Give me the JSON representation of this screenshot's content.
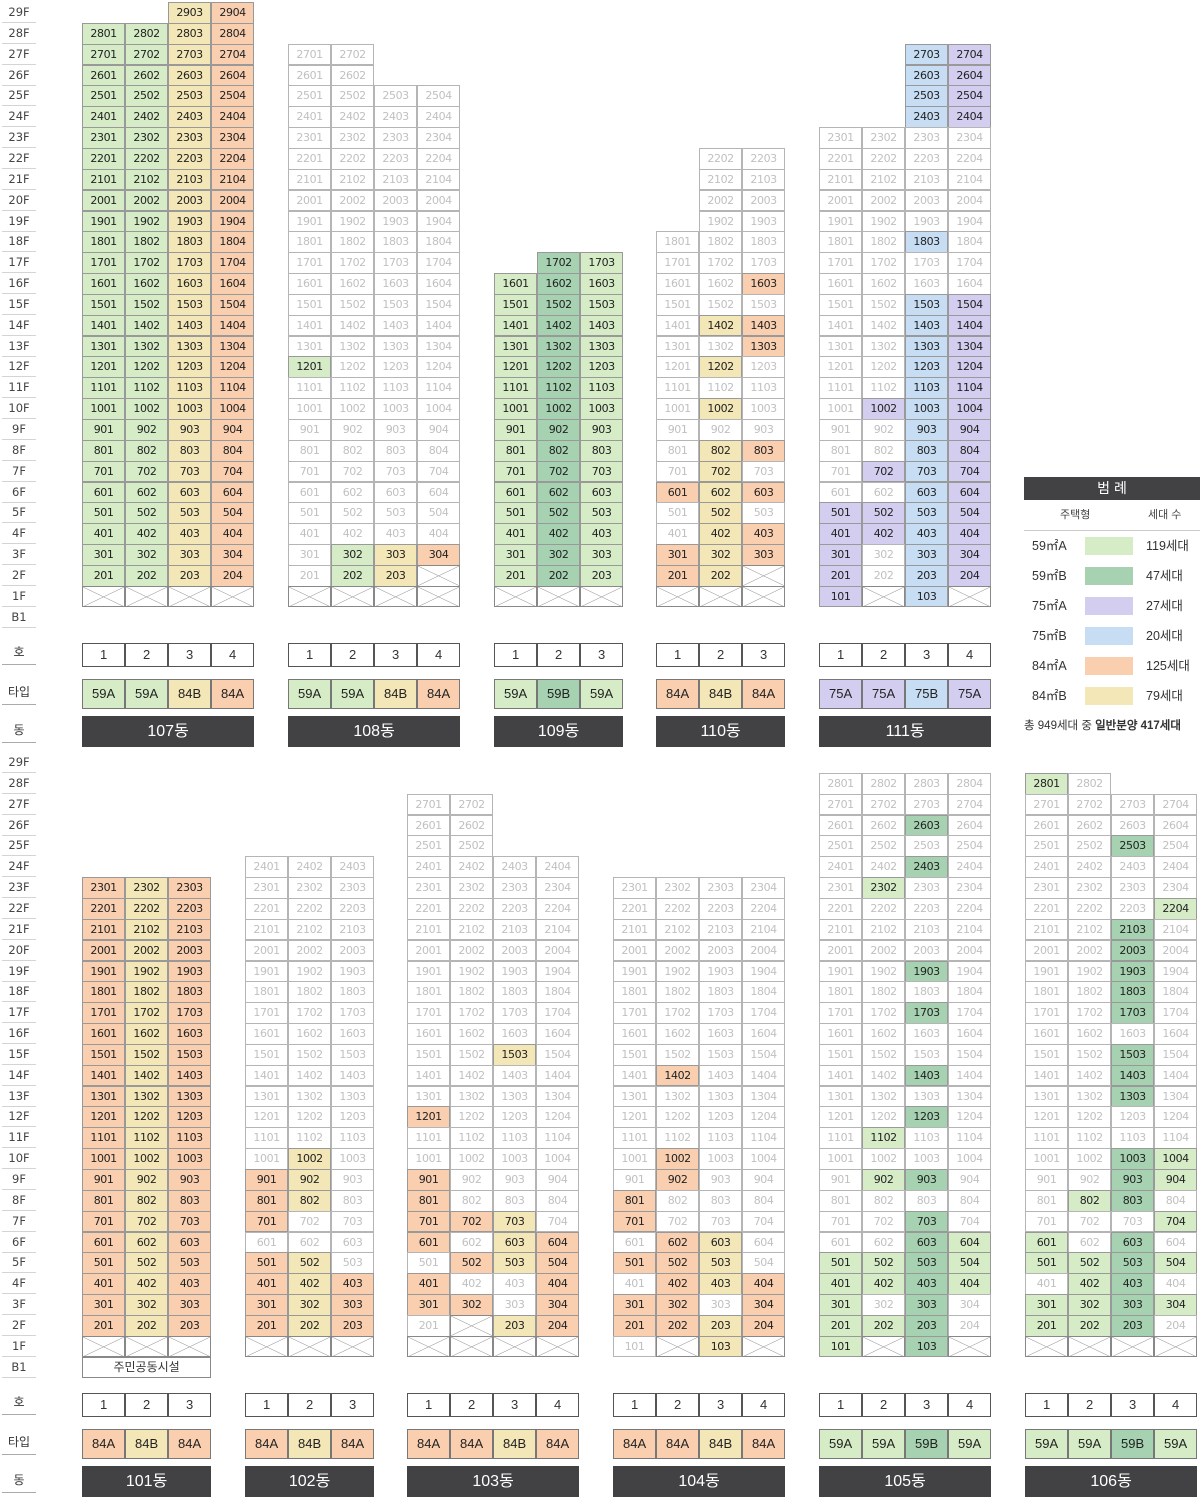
{
  "floor_axis": [
    "29F",
    "28F",
    "27F",
    "26F",
    "25F",
    "24F",
    "23F",
    "22F",
    "21F",
    "20F",
    "19F",
    "18F",
    "17F",
    "16F",
    "15F",
    "14F",
    "13F",
    "12F",
    "11F",
    "10F",
    "9F",
    "8F",
    "7F",
    "6F",
    "5F",
    "4F",
    "3F",
    "2F",
    "1F",
    "B1"
  ],
  "row_labels": {
    "ho": "호",
    "type": "타입",
    "dong": "동"
  },
  "colors": {
    "59A": "#d5ecc6",
    "59B": "#a6d2b1",
    "75A": "#d3cef0",
    "75B": "#c7ddf3",
    "84A": "#f9cfb0",
    "84B": "#f3e6b7"
  },
  "legend": {
    "title": "범 례",
    "col_type": "주택형",
    "col_count": "세대 수",
    "rows": [
      {
        "key": "59A",
        "label": "59㎡A",
        "count": "119세대"
      },
      {
        "key": "59B",
        "label": "59㎡B",
        "count": "47세대"
      },
      {
        "key": "75A",
        "label": "75㎡A",
        "count": "27세대"
      },
      {
        "key": "75B",
        "label": "75㎡B",
        "count": "20세대"
      },
      {
        "key": "84A",
        "label": "84㎡A",
        "count": "125세대"
      },
      {
        "key": "84B",
        "label": "84㎡B",
        "count": "79세대"
      }
    ],
    "total_prefix": "총 949세대 중 ",
    "total_emph": "일반분양 417세대"
  },
  "buildings": [
    {
      "name": "107동",
      "lines": [
        "1",
        "2",
        "3",
        "4"
      ],
      "types": [
        "59A",
        "59A",
        "84B",
        "84A"
      ],
      "top": [
        28,
        28,
        29,
        29
      ],
      "blanks": [
        1,
        1,
        1,
        1
      ],
      "white": [],
      "colored": []
    },
    {
      "name": "108동",
      "lines": [
        "1",
        "2",
        "3",
        "4"
      ],
      "types": [
        "59A",
        "59A",
        "84B",
        "84A"
      ],
      "top": [
        27,
        27,
        25,
        25
      ],
      "blanks": [
        1,
        1,
        1,
        2
      ],
      "white": [],
      "colored": [
        "1201",
        "202",
        "302",
        "203",
        "303",
        "304"
      ]
    },
    {
      "name": "109동",
      "lines": [
        "1",
        "2",
        "3"
      ],
      "types": [
        "59A",
        "59B",
        "59A"
      ],
      "top": [
        16,
        17,
        17
      ],
      "blanks": [
        1,
        1,
        1
      ],
      "white": [],
      "colored": []
    },
    {
      "name": "110동",
      "lines": [
        "1",
        "2",
        "3"
      ],
      "types": [
        "84A",
        "84B",
        "84A"
      ],
      "top": [
        18,
        22,
        22
      ],
      "blanks": [
        1,
        1,
        2
      ],
      "white": [],
      "colored": [
        "1603",
        "1402",
        "1403",
        "1303",
        "1202",
        "1002",
        "802",
        "803",
        "702",
        "601",
        "602",
        "603",
        "502",
        "402",
        "403",
        "301",
        "302",
        "303",
        "201",
        "202"
      ]
    },
    {
      "name": "111동",
      "lines": [
        "1",
        "2",
        "3",
        "4"
      ],
      "types": [
        "75A",
        "75A",
        "75B",
        "75A"
      ],
      "top": [
        23,
        23,
        27,
        27
      ],
      "blanks": [
        0,
        1,
        0,
        1
      ],
      "white": [],
      "colored": [
        "2703",
        "2704",
        "2603",
        "2604",
        "2503",
        "2504",
        "2403",
        "2404",
        "1803",
        "1503",
        "1504",
        "1403",
        "1404",
        "1303",
        "1304",
        "1203",
        "1204",
        "1103",
        "1104",
        "1002",
        "1003",
        "1004",
        "903",
        "904",
        "803",
        "804",
        "702",
        "703",
        "704",
        "603",
        "604",
        "501",
        "502",
        "503",
        "504",
        "401",
        "402",
        "403",
        "404",
        "301",
        "303",
        "304",
        "201",
        "203",
        "204",
        "101",
        "103"
      ]
    },
    {
      "name": "101동",
      "lines": [
        "1",
        "2",
        "3"
      ],
      "types": [
        "84A",
        "84B",
        "84A"
      ],
      "top": [
        23,
        23,
        23
      ],
      "blanks": [
        1,
        1,
        1
      ],
      "white": [],
      "colored": [],
      "community": "주민공동시설"
    },
    {
      "name": "102동",
      "lines": [
        "1",
        "2",
        "3"
      ],
      "types": [
        "84A",
        "84B",
        "84A"
      ],
      "top": [
        24,
        24,
        24
      ],
      "blanks": [
        1,
        1,
        1
      ],
      "white": [],
      "colored": [
        "1002",
        "901",
        "902",
        "801",
        "802",
        "701",
        "501",
        "502",
        "401",
        "402",
        "403",
        "301",
        "302",
        "303",
        "201",
        "202",
        "203"
      ]
    },
    {
      "name": "103동",
      "lines": [
        "1",
        "2",
        "3",
        "4"
      ],
      "types": [
        "84A",
        "84A",
        "84B",
        "84A"
      ],
      "top": [
        27,
        27,
        24,
        24
      ],
      "blanks": [
        1,
        2,
        1,
        1
      ],
      "white": [],
      "colored": [
        "1503",
        "1201",
        "901",
        "801",
        "701",
        "702",
        "703",
        "601",
        "603",
        "604",
        "502",
        "503",
        "504",
        "401",
        "404",
        "301",
        "302",
        "304",
        "203",
        "204"
      ]
    },
    {
      "name": "104동",
      "lines": [
        "1",
        "2",
        "3",
        "4"
      ],
      "types": [
        "84A",
        "84A",
        "84B",
        "84A"
      ],
      "top": [
        23,
        23,
        23,
        23
      ],
      "blanks": [
        0,
        1,
        0,
        1
      ],
      "white": [],
      "colored": [
        "1402",
        "1002",
        "902",
        "801",
        "701",
        "602",
        "603",
        "501",
        "502",
        "503",
        "402",
        "403",
        "404",
        "301",
        "302",
        "304",
        "201",
        "202",
        "203",
        "204",
        "103"
      ]
    },
    {
      "name": "105동",
      "lines": [
        "1",
        "2",
        "3",
        "4"
      ],
      "types": [
        "59A",
        "59A",
        "59B",
        "59A"
      ],
      "top": [
        28,
        28,
        28,
        28
      ],
      "blanks": [
        0,
        1,
        0,
        1
      ],
      "white": [],
      "colored": [
        "2603",
        "2403",
        "2302",
        "1903",
        "1703",
        "1403",
        "1203",
        "1102",
        "902",
        "903",
        "703",
        "603",
        "604",
        "501",
        "502",
        "503",
        "504",
        "401",
        "402",
        "403",
        "404",
        "301",
        "303",
        "201",
        "202",
        "203",
        "101",
        "103"
      ]
    },
    {
      "name": "106동",
      "lines": [
        "1",
        "2",
        "3",
        "4"
      ],
      "types": [
        "59A",
        "59A",
        "59B",
        "59A"
      ],
      "top": [
        28,
        28,
        27,
        27
      ],
      "blanks": [
        1,
        1,
        1,
        1
      ],
      "white": [],
      "colored": [
        "2801",
        "2503",
        "2204",
        "2103",
        "2003",
        "1903",
        "1803",
        "1703",
        "1503",
        "1403",
        "1303",
        "1003",
        "1004",
        "903",
        "904",
        "802",
        "803",
        "704",
        "601",
        "603",
        "501",
        "502",
        "503",
        "504",
        "402",
        "403",
        "301",
        "302",
        "303",
        "304",
        "201",
        "202",
        "203"
      ]
    }
  ]
}
